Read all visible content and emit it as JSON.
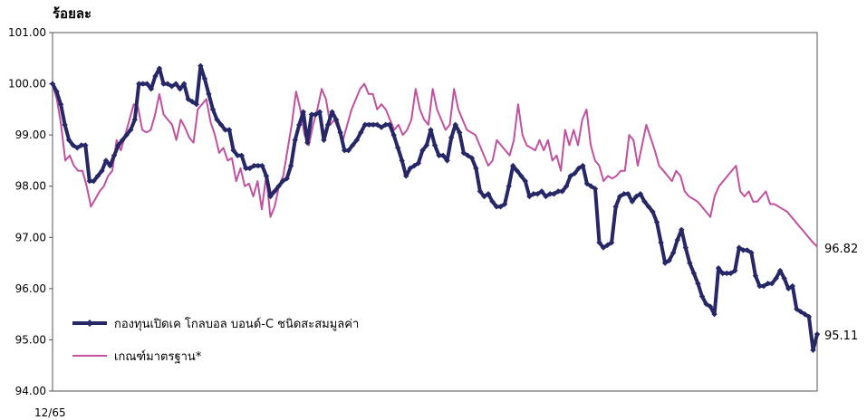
{
  "chart_data": {
    "type": "line",
    "ylabel": "ร้อยละ",
    "ylim": [
      94,
      101
    ],
    "yticks": [
      "94.00",
      "95.00",
      "96.00",
      "97.00",
      "98.00",
      "99.00",
      "100.00",
      "101.00"
    ],
    "xtick_label": "12/65",
    "grid": false,
    "legend": "bottom-left",
    "series": [
      {
        "name": "กองทุนเปิดเค โกลบอล บอนด์-C ชนิดสะสมมูลค่า",
        "color": "#262766",
        "marker": "diamond",
        "end_label": "95.11",
        "values": [
          100.0,
          99.85,
          99.6,
          99.2,
          98.9,
          98.8,
          98.75,
          98.8,
          98.8,
          98.1,
          98.1,
          98.2,
          98.3,
          98.5,
          98.4,
          98.6,
          98.8,
          98.9,
          99.0,
          99.1,
          99.3,
          100.0,
          100.0,
          100.0,
          99.9,
          100.15,
          100.3,
          100.0,
          100.0,
          99.95,
          100.0,
          99.9,
          100.0,
          99.7,
          99.65,
          99.6,
          100.35,
          100.1,
          99.8,
          99.5,
          99.3,
          99.2,
          99.1,
          99.1,
          98.7,
          98.6,
          98.6,
          98.35,
          98.35,
          98.4,
          98.4,
          98.4,
          98.2,
          97.8,
          97.9,
          98.0,
          98.1,
          98.15,
          98.4,
          98.9,
          99.2,
          99.45,
          98.85,
          99.4,
          99.4,
          99.45,
          98.9,
          99.2,
          99.45,
          99.3,
          99.05,
          98.7,
          98.7,
          98.8,
          98.9,
          99.05,
          99.2,
          99.2,
          99.2,
          99.2,
          99.15,
          99.2,
          99.2,
          99.0,
          98.75,
          98.5,
          98.2,
          98.35,
          98.4,
          98.45,
          98.7,
          98.8,
          99.1,
          98.8,
          98.6,
          98.6,
          98.5,
          98.95,
          99.2,
          99.05,
          98.65,
          98.6,
          98.55,
          98.35,
          97.9,
          97.8,
          97.85,
          97.7,
          97.6,
          97.6,
          97.65,
          98.0,
          98.4,
          98.3,
          98.2,
          98.1,
          97.8,
          97.85,
          97.85,
          97.9,
          97.8,
          97.85,
          97.85,
          97.9,
          97.9,
          98.0,
          98.2,
          98.25,
          98.35,
          98.4,
          98.05,
          98.0,
          97.95,
          96.9,
          96.8,
          96.85,
          96.9,
          97.6,
          97.8,
          97.85,
          97.85,
          97.7,
          97.8,
          97.85,
          97.7,
          97.6,
          97.5,
          97.3,
          96.9,
          96.5,
          96.55,
          96.7,
          96.95,
          97.15,
          96.8,
          96.5,
          96.3,
          96.1,
          95.85,
          95.7,
          95.65,
          95.5,
          96.4,
          96.3,
          96.3,
          96.3,
          96.35,
          96.8,
          96.75,
          96.75,
          96.7,
          96.25,
          96.05,
          96.05,
          96.1,
          96.1,
          96.2,
          96.35,
          96.2,
          96.0,
          96.05,
          95.6,
          95.55,
          95.5,
          95.45,
          94.8,
          95.11
        ]
      },
      {
        "name": "เกณฑ์มาตรฐาน*",
        "color": "#c0519f",
        "marker": "none",
        "end_label": "96.82",
        "values": [
          100.0,
          99.7,
          99.2,
          98.5,
          98.6,
          98.4,
          98.3,
          98.3,
          98.0,
          97.6,
          97.75,
          97.9,
          98.0,
          98.2,
          98.3,
          98.9,
          98.7,
          99.0,
          99.3,
          99.6,
          99.55,
          99.1,
          99.05,
          99.1,
          99.4,
          99.8,
          99.4,
          99.3,
          99.2,
          98.9,
          99.3,
          99.15,
          98.95,
          98.85,
          99.5,
          99.6,
          99.7,
          99.25,
          99.0,
          98.65,
          98.75,
          98.5,
          98.55,
          98.1,
          98.35,
          98.0,
          98.05,
          97.8,
          98.1,
          97.55,
          98.2,
          97.4,
          97.6,
          98.0,
          98.2,
          98.7,
          99.2,
          99.85,
          99.5,
          99.0,
          98.8,
          99.2,
          99.5,
          99.9,
          99.7,
          99.2,
          99.3,
          99.1,
          98.9,
          99.2,
          99.5,
          99.7,
          99.9,
          100.0,
          99.8,
          99.8,
          99.5,
          99.6,
          99.5,
          99.3,
          99.1,
          99.2,
          99.0,
          99.1,
          99.3,
          99.9,
          99.5,
          99.3,
          99.2,
          99.9,
          99.5,
          99.3,
          99.1,
          99.2,
          99.9,
          99.5,
          99.3,
          99.1,
          99.05,
          99.0,
          98.8,
          98.6,
          98.4,
          98.5,
          98.9,
          98.8,
          98.7,
          98.6,
          98.9,
          99.6,
          99.0,
          98.8,
          98.75,
          98.7,
          98.9,
          98.7,
          98.9,
          98.5,
          98.6,
          98.3,
          99.1,
          98.8,
          99.1,
          98.8,
          99.3,
          99.5,
          98.8,
          98.5,
          98.4,
          98.1,
          98.2,
          98.15,
          98.2,
          98.3,
          98.3,
          99.0,
          98.9,
          98.4,
          98.8,
          99.2,
          98.95,
          98.7,
          98.4,
          98.3,
          98.2,
          98.1,
          98.3,
          98.2,
          97.9,
          97.8,
          97.75,
          97.7,
          97.6,
          97.5,
          97.4,
          97.8,
          98.0,
          98.1,
          98.2,
          98.3,
          98.4,
          97.9,
          97.8,
          97.9,
          97.7,
          97.7,
          97.8,
          97.9,
          97.65,
          97.65,
          97.6,
          97.55,
          97.5,
          97.4,
          97.3,
          97.2,
          97.1,
          97.0,
          96.9,
          96.82
        ]
      }
    ]
  }
}
